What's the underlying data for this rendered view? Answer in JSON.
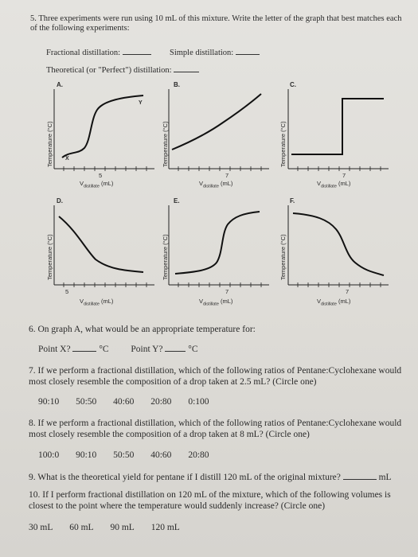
{
  "q5": {
    "number": "5.",
    "text": "Three experiments were run using 10 mL of this mixture. Write the letter of the graph that best matches each of the following experiments:",
    "fractional_label": "Fractional distillation:",
    "simple_label": "Simple distillation:",
    "theoretical_label": "Theoretical (or \"Perfect\") distillation:"
  },
  "graphs": {
    "y_axis_label": "Temperature (°C)",
    "x_axis_label": "V",
    "x_axis_sub": "distillate",
    "x_axis_unit": "(mL)",
    "items": [
      {
        "letter": "A.",
        "tick": "5",
        "point_x": "X",
        "point_y": "Y"
      },
      {
        "letter": "B.",
        "tick": "7"
      },
      {
        "letter": "C.",
        "tick": "7"
      },
      {
        "letter": "D.",
        "tick": "5"
      },
      {
        "letter": "E.",
        "tick": "7"
      },
      {
        "letter": "F.",
        "tick": "7"
      }
    ]
  },
  "q6": {
    "number": "6.",
    "text": "On graph A, what would be an appropriate temperature for:",
    "point_x": "Point X?",
    "unit": "°C",
    "point_y": "Point Y?"
  },
  "q7": {
    "number": "7.",
    "text": "If we perform a fractional distillation, which of the following ratios of Pentane:Cyclohexane would most closely resemble the composition of a drop taken at 2.5 mL? (Circle one)",
    "options": [
      "90:10",
      "50:50",
      "40:60",
      "20:80",
      "0:100"
    ]
  },
  "q8": {
    "number": "8.",
    "text": "If we perform a fractional distillation, which of the following ratios of Pentane:Cyclohexane would most closely resemble the composition of a drop taken at 8 mL? (Circle one)",
    "options": [
      "100:0",
      "90:10",
      "50:50",
      "40:60",
      "20:80"
    ]
  },
  "q9": {
    "number": "9.",
    "text": "What is the theoretical yield for pentane if I distill 120 mL of the original mixture?",
    "unit": "mL"
  },
  "q10": {
    "number": "10.",
    "text": "If I perform fractional distillation on 120 mL of the mixture, which of the following volumes is closest to the point where the temperature would suddenly increase? (Circle one)",
    "options": [
      "30 mL",
      "60 mL",
      "90 mL",
      "120 mL"
    ]
  }
}
